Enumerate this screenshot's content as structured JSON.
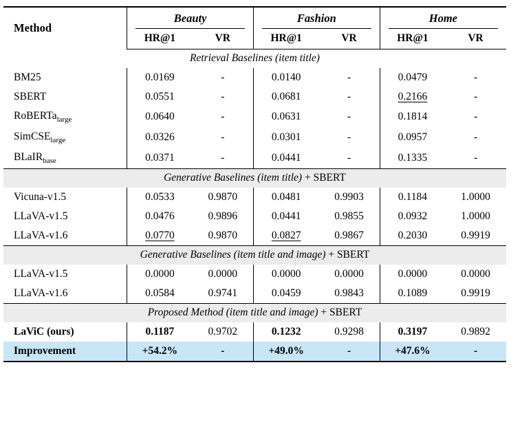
{
  "colors": {
    "section_band": "#ececec",
    "highlight_row": "#c9e6f8",
    "rule_color": "#000000"
  },
  "table": {
    "method_header": "Method",
    "groups": [
      {
        "label": "Beauty",
        "cols": [
          "HR@1",
          "VR"
        ]
      },
      {
        "label": "Fashion",
        "cols": [
          "HR@1",
          "VR"
        ]
      },
      {
        "label": "Home",
        "cols": [
          "HR@1",
          "VR"
        ]
      }
    ],
    "sections": [
      {
        "title": "Retrieval Baselines (item title)",
        "suffix": "",
        "shaded": false,
        "rows": [
          {
            "method": "BM25",
            "sub": "",
            "values": [
              "0.0169",
              "-",
              "0.0140",
              "-",
              "0.0479",
              "-"
            ]
          },
          {
            "method": "SBERT",
            "sub": "",
            "values": [
              "0.0551",
              "-",
              "0.0681",
              "-",
              "0.2166",
              "-"
            ],
            "styles": [
              "",
              "",
              "",
              "",
              "u",
              ""
            ]
          },
          {
            "method": "RoBERTa",
            "sub": "large",
            "values": [
              "0.0640",
              "-",
              "0.0631",
              "-",
              "0.1814",
              "-"
            ]
          },
          {
            "method": "SimCSE",
            "sub": "large",
            "values": [
              "0.0326",
              "-",
              "0.0301",
              "-",
              "0.0957",
              "-"
            ]
          },
          {
            "method": "BLaIR",
            "sub": "base",
            "values": [
              "0.0371",
              "-",
              "0.0441",
              "-",
              "0.1335",
              "-"
            ]
          }
        ]
      },
      {
        "title": "Generative Baselines (item title)",
        "suffix": " + SBERT",
        "shaded": true,
        "rows": [
          {
            "method": "Vicuna-v1.5",
            "sub": "",
            "values": [
              "0.0533",
              "0.9870",
              "0.0481",
              "0.9903",
              "0.1184",
              "1.0000"
            ]
          },
          {
            "method": "LLaVA-v1.5",
            "sub": "",
            "values": [
              "0.0476",
              "0.9896",
              "0.0441",
              "0.9855",
              "0.0932",
              "1.0000"
            ]
          },
          {
            "method": "LLaVA-v1.6",
            "sub": "",
            "values": [
              "0.0770",
              "0.9870",
              "0.0827",
              "0.9867",
              "0.2030",
              "0.9919"
            ],
            "styles": [
              "u",
              "",
              "u",
              "",
              "",
              ""
            ]
          }
        ]
      },
      {
        "title": "Generative Baselines (item title and image)",
        "suffix": " + SBERT",
        "shaded": true,
        "rows": [
          {
            "method": "LLaVA-v1.5",
            "sub": "",
            "values": [
              "0.0000",
              "0.0000",
              "0.0000",
              "0.0000",
              "0.0000",
              "0.0000"
            ]
          },
          {
            "method": "LLaVA-v1.6",
            "sub": "",
            "values": [
              "0.0584",
              "0.9741",
              "0.0459",
              "0.9843",
              "0.1089",
              "0.9919"
            ]
          }
        ]
      },
      {
        "title": "Proposed Method (item title and image)",
        "suffix": " + SBERT",
        "shaded": true,
        "rows": [
          {
            "method": "LaViC (ours)",
            "sub": "",
            "bold": true,
            "values": [
              "0.1187",
              "0.9702",
              "0.1232",
              "0.9298",
              "0.3197",
              "0.9892"
            ],
            "styles": [
              "b",
              "",
              "b",
              "",
              "b",
              ""
            ]
          },
          {
            "method": "Improvement",
            "sub": "",
            "bold": true,
            "highlight": true,
            "values": [
              "+54.2%",
              "-",
              "+49.0%",
              "-",
              "+47.6%",
              "-"
            ],
            "styles": [
              "b",
              "b",
              "b",
              "b",
              "b",
              "b"
            ]
          }
        ]
      }
    ]
  }
}
